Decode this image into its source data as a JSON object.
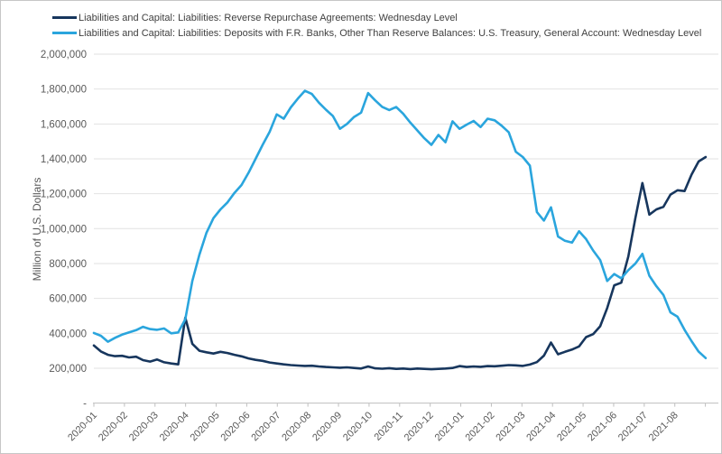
{
  "chart_data": {
    "type": "line",
    "title": "",
    "xlabel": "",
    "ylabel": "Million of U.S. Dollars",
    "ylim": [
      0,
      2000000
    ],
    "grid": "horizontal-only",
    "legend_position": "top-left",
    "x_frequency_note": "weekly Wednesday levels",
    "y_ticks": [
      {
        "label": "2,000,000",
        "value": 2000000
      },
      {
        "label": "1,800,000",
        "value": 1800000
      },
      {
        "label": "1,600,000",
        "value": 1600000
      },
      {
        "label": "1,400,000",
        "value": 1400000
      },
      {
        "label": "1,200,000",
        "value": 1200000
      },
      {
        "label": "1,000,000",
        "value": 1000000
      },
      {
        "label": "800,000",
        "value": 800000
      },
      {
        "label": "600,000",
        "value": 600000
      },
      {
        "label": "400,000",
        "value": 400000
      },
      {
        "label": "200,000",
        "value": 200000
      },
      {
        "label": "-",
        "value": 0
      }
    ],
    "x_tick_labels": [
      "2020-01",
      "2020-02",
      "2020-03",
      "2020-04",
      "2020-05",
      "2020-06",
      "2020-07",
      "2020-08",
      "2020-09",
      "2020-10",
      "2020-11",
      "2020-12",
      "2021-01",
      "2021-02",
      "2021-03",
      "2021-04",
      "2021-05",
      "2021-06",
      "2021-07",
      "2021-08"
    ],
    "series": [
      {
        "id": "reverse-repurchase-agreements",
        "name": "Liabilities and Capital: Liabilities: Reverse Repurchase Agreements: Wednesday Level",
        "color": "#17365d",
        "values": [
          330000,
          296000,
          277000,
          269000,
          271000,
          262000,
          266000,
          246000,
          238000,
          250000,
          234000,
          227000,
          222000,
          490000,
          340000,
          300000,
          291000,
          284000,
          294000,
          287000,
          277000,
          268000,
          256000,
          248000,
          242000,
          233000,
          227000,
          222000,
          218000,
          215000,
          213000,
          214000,
          210000,
          207000,
          205000,
          203000,
          205000,
          201000,
          198000,
          210000,
          199000,
          197000,
          200000,
          196000,
          198000,
          195000,
          198000,
          196000,
          194000,
          196000,
          198000,
          201000,
          212000,
          207000,
          210000,
          208000,
          212000,
          211000,
          214000,
          218000,
          216000,
          213000,
          221000,
          235000,
          272000,
          347000,
          280000,
          294000,
          307000,
          325000,
          378000,
          395000,
          440000,
          545000,
          675000,
          690000,
          840000,
          1060000,
          1261000,
          1080000,
          1110000,
          1125000,
          1195000,
          1220000,
          1215000,
          1310000,
          1385000,
          1410000
        ]
      },
      {
        "id": "treasury-general-account",
        "name": "Liabilities and Capital: Liabilities: Deposits with F.R. Banks, Other Than Reserve Balances: U.S. Treasury, General Account: Wednesday Level",
        "color": "#2aa5dd",
        "values": [
          402000,
          386000,
          352000,
          374000,
          392000,
          405000,
          418000,
          437000,
          424000,
          420000,
          428000,
          400000,
          405000,
          480000,
          700000,
          850000,
          975000,
          1060000,
          1110000,
          1150000,
          1205000,
          1250000,
          1320000,
          1400000,
          1480000,
          1555000,
          1655000,
          1630000,
          1695000,
          1745000,
          1790000,
          1772000,
          1722000,
          1682000,
          1645000,
          1572000,
          1600000,
          1640000,
          1665000,
          1777000,
          1735000,
          1698000,
          1680000,
          1697000,
          1658000,
          1608000,
          1563000,
          1518000,
          1480000,
          1537000,
          1495000,
          1615000,
          1572000,
          1596000,
          1617000,
          1582000,
          1630000,
          1621000,
          1590000,
          1552000,
          1441000,
          1410000,
          1361000,
          1095000,
          1046000,
          1122000,
          955000,
          930000,
          920000,
          985000,
          940000,
          875000,
          820000,
          700000,
          740000,
          715000,
          762000,
          800000,
          855000,
          730000,
          670000,
          620000,
          520000,
          495000,
          420000,
          355000,
          295000,
          258000
        ]
      }
    ]
  }
}
